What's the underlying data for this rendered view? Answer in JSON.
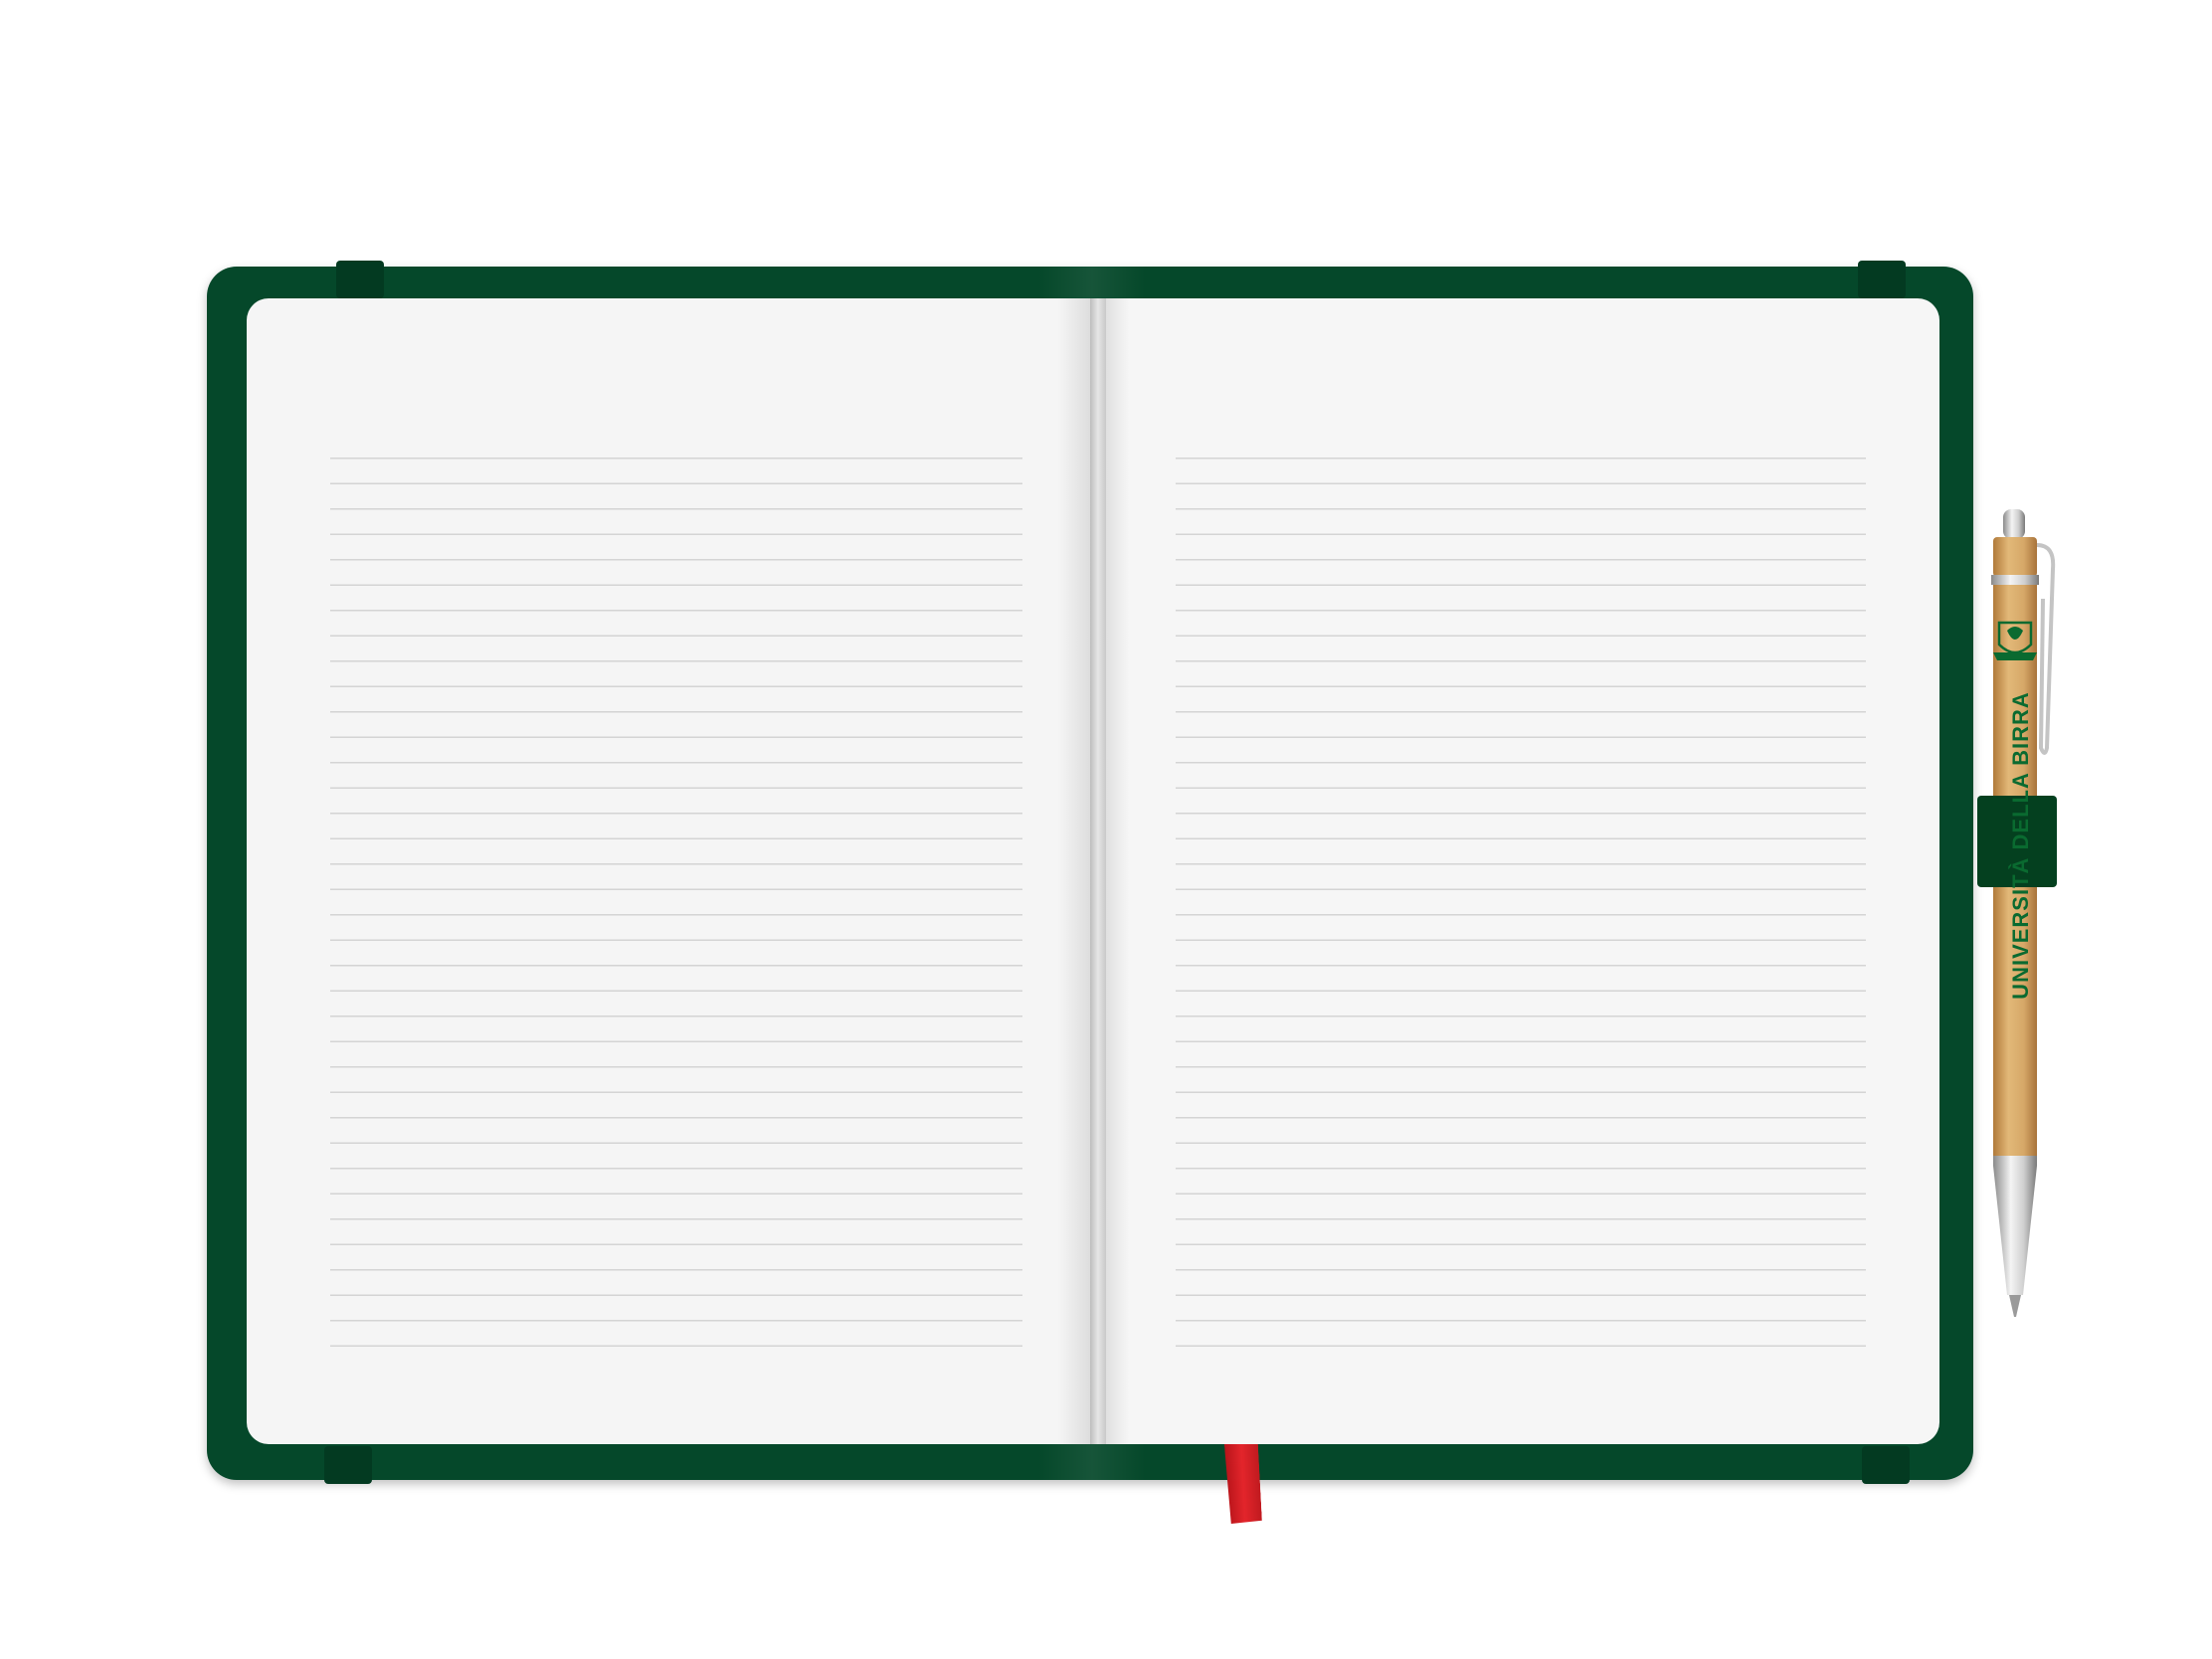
{
  "scene": {
    "description_label": "Open lined notebook with pen",
    "colors": {
      "cover": "#05482a",
      "strap": "#033a21",
      "page": "#f5f5f5",
      "rule_line": "#d4d4d4",
      "ribbon": "#e3252b",
      "pen_body": "#d6a868",
      "pen_print": "#0a6a30"
    }
  },
  "notebook": {
    "left_page": {
      "rule_count": 36
    },
    "right_page": {
      "rule_count": 36
    }
  },
  "pen": {
    "brand_text": "UNIVERSITÀ DELLA BIRRA",
    "icon": "crest-logo-icon"
  }
}
